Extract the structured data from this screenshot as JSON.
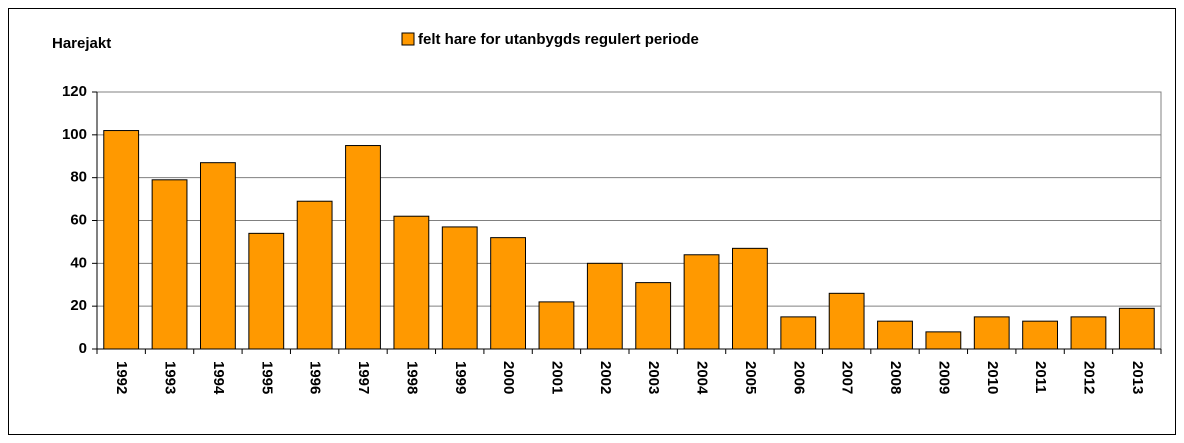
{
  "chart_data": {
    "type": "bar",
    "title": "Harejakt",
    "legend": "felt hare for utanbygds regulert periode",
    "categories": [
      "1992",
      "1993",
      "1994",
      "1995",
      "1996",
      "1997",
      "1998",
      "1999",
      "2000",
      "2001",
      "2002",
      "2003",
      "2004",
      "2005",
      "2006",
      "2007",
      "2008",
      "2009",
      "2010",
      "2011",
      "2012",
      "2013"
    ],
    "values": [
      102,
      79,
      87,
      54,
      69,
      95,
      62,
      57,
      52,
      22,
      40,
      31,
      44,
      47,
      15,
      26,
      13,
      8,
      15,
      13,
      15,
      19
    ],
    "color": "#ff9900",
    "ylim": [
      0,
      120
    ],
    "yticks": [
      0,
      20,
      40,
      60,
      80,
      100,
      120
    ],
    "grid": true
  }
}
